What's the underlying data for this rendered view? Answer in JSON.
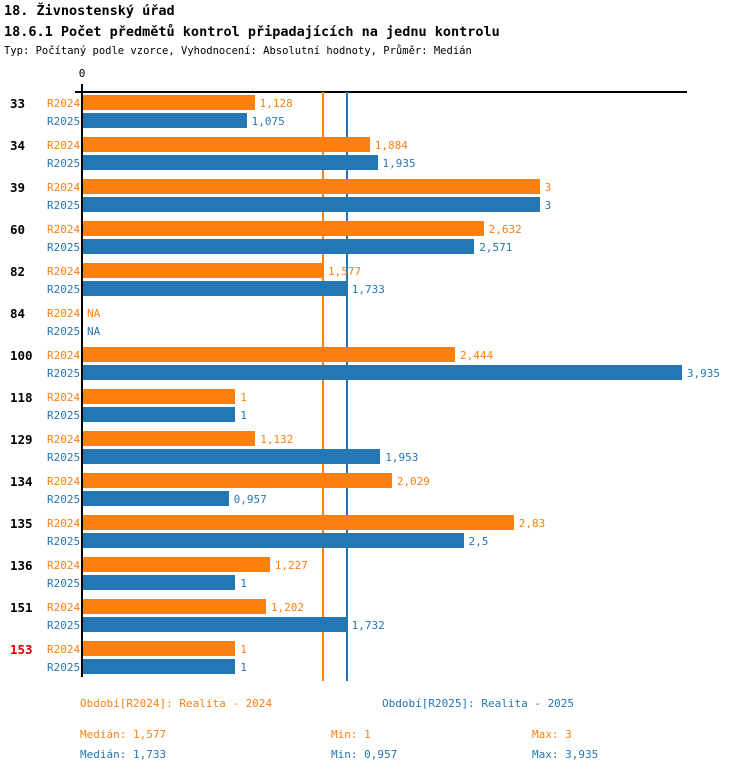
{
  "header": {
    "title": "18. Živnostenský úřad",
    "subtitle": "18.6.1 Počet předmětů kontrol připadajících na jednu kontrolu",
    "meta": "Typ: Počítaný podle vzorce, Vyhodnocení: Absolutní hodnoty, Průměr: Medián"
  },
  "colors": {
    "r2024": "#FD7F0E",
    "r2025": "#2277B4",
    "highlight_category": "#DD0000",
    "axis": "#000000"
  },
  "chart_data": {
    "type": "bar",
    "orientation": "horizontal",
    "x_axis": {
      "zero_label": "0",
      "xmax": 3.935,
      "grid": false
    },
    "categories": [
      "33",
      "34",
      "39",
      "60",
      "82",
      "84",
      "100",
      "118",
      "129",
      "134",
      "135",
      "136",
      "151",
      "153"
    ],
    "highlighted_category": "153",
    "series": [
      {
        "name": "R2024",
        "color": "#FD7F0E",
        "values": [
          1.128,
          1.884,
          3,
          2.632,
          1.577,
          null,
          2.444,
          1,
          1.132,
          2.029,
          2.83,
          1.227,
          1.202,
          1
        ],
        "labels": [
          "1,128",
          "1,884",
          "3",
          "2,632",
          "1,577",
          "NA",
          "2,444",
          "1",
          "1,132",
          "2,029",
          "2,83",
          "1,227",
          "1,202",
          "1"
        ]
      },
      {
        "name": "R2025",
        "color": "#2277B4",
        "values": [
          1.075,
          1.935,
          3,
          2.571,
          1.733,
          null,
          3.935,
          1,
          1.953,
          0.957,
          2.5,
          1,
          1.732,
          1
        ],
        "labels": [
          "1,075",
          "1,935",
          "3",
          "2,571",
          "1,733",
          "NA",
          "3,935",
          "1",
          "1,953",
          "0,957",
          "2,5",
          "1",
          "1,732",
          "1"
        ]
      }
    ],
    "reference_lines": [
      {
        "name": "median-2024",
        "value": 1.577,
        "color": "#FD7F0E"
      },
      {
        "name": "median-2025",
        "value": 1.733,
        "color": "#2277B4"
      }
    ]
  },
  "footer": {
    "legend": [
      {
        "label": "Období[R2024]: Realita - 2024",
        "color": "#FD7F0E"
      },
      {
        "label": "Období[R2025]: Realita - 2025",
        "color": "#2277B4"
      }
    ],
    "stats": [
      {
        "median": "Medián: 1,577",
        "min": "Min: 1",
        "max": "Max: 3",
        "color": "#FD7F0E"
      },
      {
        "median": "Medián: 1,733",
        "min": "Min: 0,957",
        "max": "Max: 3,935",
        "color": "#2277B4"
      }
    ]
  }
}
